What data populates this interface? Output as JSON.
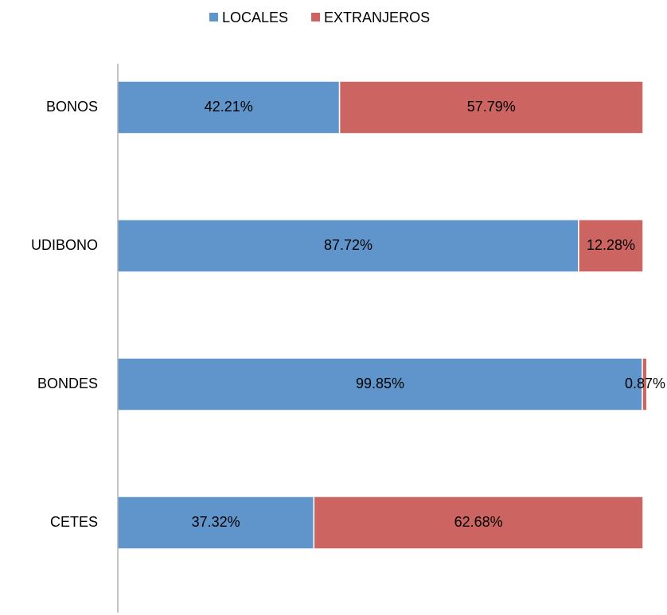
{
  "chart_data": {
    "type": "bar",
    "orientation": "horizontal",
    "stacked": true,
    "categories": [
      "BONOS",
      "UDIBONO",
      "BONDES",
      "CETES"
    ],
    "series": [
      {
        "name": "LOCALES",
        "color": "#5f95ca",
        "values": [
          42.21,
          87.72,
          99.85,
          37.32
        ],
        "value_labels": [
          "42.21%",
          "87.72%",
          "99.85%",
          "37.32%"
        ]
      },
      {
        "name": "EXTRANJEROS",
        "color": "#cc6561",
        "values": [
          57.79,
          12.28,
          0.87,
          62.68
        ],
        "value_labels": [
          "57.79%",
          "12.28%",
          "0.87%",
          "62.68%"
        ]
      }
    ],
    "xlim": [
      0,
      100
    ],
    "legend": "top"
  }
}
